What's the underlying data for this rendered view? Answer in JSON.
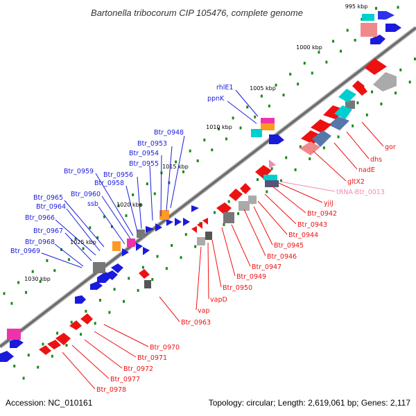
{
  "title": "Bartonella tribocorum CIP 105476, complete genome",
  "footer": {
    "accession": "Accession: NC_010161",
    "topology": "Topology: circular; Length: 2,619,061 bp; Genes: 2,117"
  },
  "ticks": [
    "995 kbp",
    "1000 kbp",
    "1005 kbp",
    "1010 kbp",
    "1015 kbp",
    "1020 kbp",
    "1025 kbp",
    "1030 kbp"
  ],
  "labels_blue": [
    "rhlE1",
    "ppnK",
    "Btr_0948",
    "Btr_0953",
    "Btr_0954",
    "Btr_0955",
    "Btr_0956",
    "Btr_0958",
    "Btr_0959",
    "Btr_0960",
    "ssb",
    "Btr_0965",
    "Btr_0964",
    "Btr_0966",
    "Btr_0967",
    "Btr_0968",
    "Btr_0969"
  ],
  "labels_red": [
    "gor",
    "dhs",
    "nadE",
    "gltX2",
    "yjiJ",
    "Btr_0942",
    "Btr_0943",
    "Btr_0944",
    "Btr_0945",
    "Btr_0946",
    "Btr_0947",
    "Btr_0949",
    "Btr_0950",
    "vapD",
    "vap",
    "Btr_0963",
    "Btr_0970",
    "Btr_0971",
    "Btr_0972",
    "Btr_0977",
    "Btr_0978"
  ],
  "labels_pink": [
    "tRNA-Btr_0013"
  ],
  "colors": {
    "backbone": "#6e6e6e",
    "forward": "#1a1add",
    "reverse": "#ee1111",
    "trna": "#f08cb4",
    "gc_dots": "#1a8a1a"
  }
}
